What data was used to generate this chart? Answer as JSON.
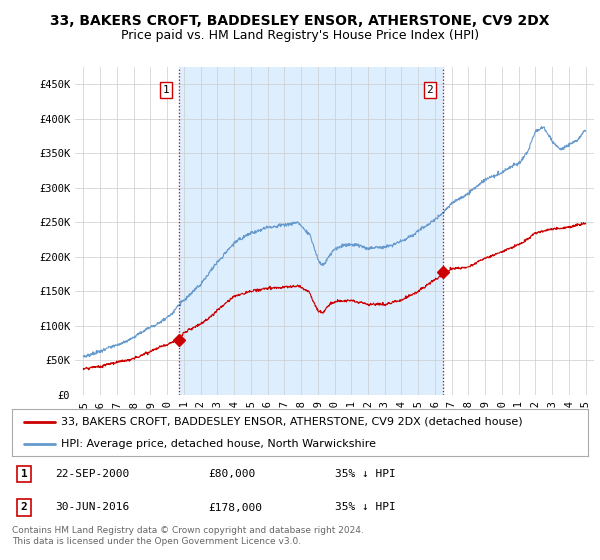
{
  "title": "33, BAKERS CROFT, BADDESLEY ENSOR, ATHERSTONE, CV9 2DX",
  "subtitle": "Price paid vs. HM Land Registry's House Price Index (HPI)",
  "ylabel_ticks": [
    "£0",
    "£50K",
    "£100K",
    "£150K",
    "£200K",
    "£250K",
    "£300K",
    "£350K",
    "£400K",
    "£450K"
  ],
  "ytick_vals": [
    0,
    50000,
    100000,
    150000,
    200000,
    250000,
    300000,
    350000,
    400000,
    450000
  ],
  "ylim": [
    0,
    475000
  ],
  "xlim_start": 1994.5,
  "xlim_end": 2025.5,
  "xtick_labels": [
    "1995",
    "1996",
    "1997",
    "1998",
    "1999",
    "2000",
    "2001",
    "2002",
    "2003",
    "2004",
    "2005",
    "2006",
    "2007",
    "2008",
    "2009",
    "2010",
    "2011",
    "2012",
    "2013",
    "2014",
    "2015",
    "2016",
    "2017",
    "2018",
    "2019",
    "2020",
    "2021",
    "2022",
    "2023",
    "2024",
    "2025"
  ],
  "xtick_vals": [
    1995,
    1996,
    1997,
    1998,
    1999,
    2000,
    2001,
    2002,
    2003,
    2004,
    2005,
    2006,
    2007,
    2008,
    2009,
    2010,
    2011,
    2012,
    2013,
    2014,
    2015,
    2016,
    2017,
    2018,
    2019,
    2020,
    2021,
    2022,
    2023,
    2024,
    2025
  ],
  "sale1_x": 2000.72,
  "sale1_y": 80000,
  "sale1_label": "1",
  "sale2_x": 2016.5,
  "sale2_y": 178000,
  "sale2_label": "2",
  "vline1_x": 2000.72,
  "vline2_x": 2016.5,
  "red_line_color": "#cc0000",
  "blue_line_color": "#6699cc",
  "vline_color": "#cc0000",
  "shade_color": "#ddeeff",
  "grid_color": "#cccccc",
  "background_color": "#ffffff",
  "legend_label_red": "33, BAKERS CROFT, BADDESLEY ENSOR, ATHERSTONE, CV9 2DX (detached house)",
  "legend_label_blue": "HPI: Average price, detached house, North Warwickshire",
  "table_row1": [
    "1",
    "22-SEP-2000",
    "£80,000",
    "35% ↓ HPI"
  ],
  "table_row2": [
    "2",
    "30-JUN-2016",
    "£178,000",
    "35% ↓ HPI"
  ],
  "footnote": "Contains HM Land Registry data © Crown copyright and database right 2024.\nThis data is licensed under the Open Government Licence v3.0.",
  "title_fontsize": 10,
  "subtitle_fontsize": 9,
  "tick_fontsize": 7.5,
  "legend_fontsize": 8,
  "table_fontsize": 8,
  "footnote_fontsize": 6.5
}
